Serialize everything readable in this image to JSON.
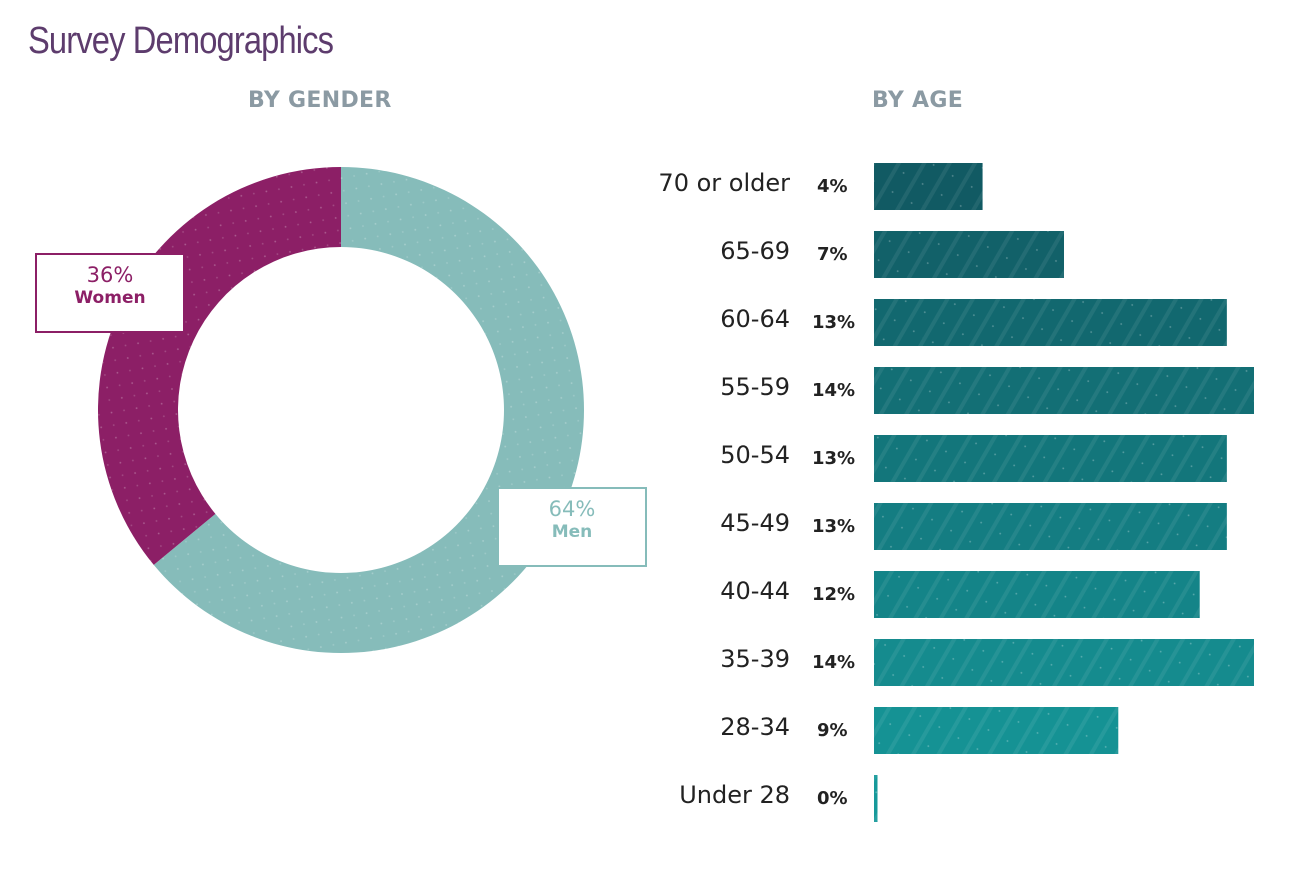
{
  "title": "Survey Demographics",
  "colors": {
    "title": "#5d3c6d",
    "women": "#8c1f66",
    "men": "#86bcba",
    "bar_top": "#115a63",
    "bar_bottom": "#16999a"
  },
  "chart_data": [
    {
      "type": "pie",
      "title": "BY GENDER",
      "donut": true,
      "slices": [
        {
          "name": "Men",
          "value": 64,
          "label": "64%",
          "color": "#86bcba"
        },
        {
          "name": "Women",
          "value": 36,
          "label": "36%",
          "color": "#8c1f66"
        }
      ]
    },
    {
      "type": "bar",
      "orientation": "horizontal",
      "title": "BY AGE",
      "categories": [
        "70 or older",
        "65-69",
        "60-64",
        "55-59",
        "50-54",
        "45-49",
        "40-44",
        "35-39",
        "28-34",
        "Under 28"
      ],
      "values": [
        4,
        7,
        13,
        14,
        13,
        13,
        12,
        14,
        9,
        0
      ],
      "value_labels": [
        "4%",
        "7%",
        "13%",
        "14%",
        "13%",
        "13%",
        "12%",
        "14%",
        "9%",
        "0%"
      ],
      "xlim": [
        0,
        14
      ]
    }
  ]
}
